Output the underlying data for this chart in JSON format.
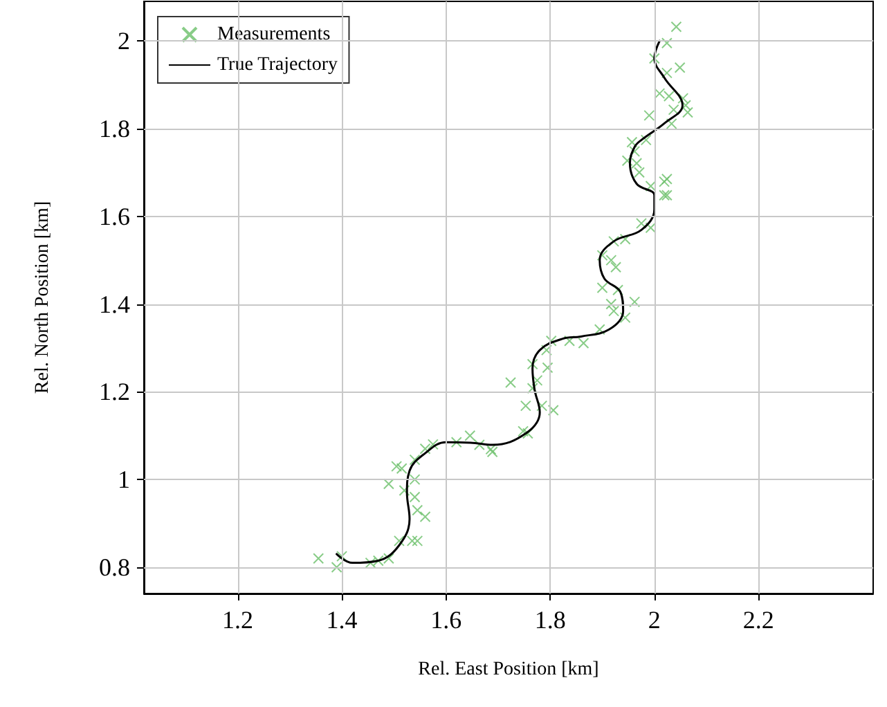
{
  "chart_data": {
    "type": "scatter",
    "xlabel": "Rel. East Position [km]",
    "ylabel": "Rel. North Position [km]",
    "xlim": [
      1.02,
      2.42
    ],
    "ylim": [
      0.74,
      2.09
    ],
    "xticks": [
      1.2,
      1.4,
      1.6,
      1.8,
      2,
      2.2
    ],
    "yticks": [
      0.8,
      1,
      1.2,
      1.4,
      1.6,
      1.8,
      2
    ],
    "grid": true,
    "legend": "top left",
    "marker": "cross",
    "series": [
      {
        "name": "Measurements",
        "color": "#6abf69",
        "x": [
          1.355,
          1.39,
          1.4,
          1.455,
          1.47,
          1.49,
          1.51,
          1.535,
          1.545,
          1.56,
          1.545,
          1.54,
          1.52,
          1.49,
          1.505,
          1.515,
          1.54,
          1.54,
          1.56,
          1.575,
          1.62,
          1.646,
          1.664,
          1.686,
          1.689,
          1.748,
          1.757,
          1.753,
          1.784,
          1.806,
          1.766,
          1.775,
          1.724,
          1.766,
          1.795,
          1.793,
          1.802,
          1.837,
          1.864,
          1.895,
          1.944,
          1.962,
          1.917,
          1.922,
          1.9,
          1.93,
          1.917,
          1.926,
          1.9,
          1.922,
          1.944,
          1.975,
          1.993,
          2.019,
          2.019,
          1.993,
          1.971,
          1.966,
          1.948,
          1.962,
          1.957,
          1.984,
          2.024,
          2.024,
          1.99,
          2.033,
          2.06,
          2.064,
          2.037,
          2.055,
          2.028,
          2.01,
          2.024,
          2.049,
          2.0,
          2.024,
          2.042
        ],
        "values": [
          0.82,
          0.8,
          0.825,
          0.81,
          0.815,
          0.82,
          0.86,
          0.86,
          0.86,
          0.915,
          0.93,
          0.96,
          0.975,
          0.99,
          1.03,
          1.025,
          1.0,
          1.045,
          1.07,
          1.08,
          1.085,
          1.1,
          1.079,
          1.069,
          1.063,
          1.11,
          1.105,
          1.168,
          1.168,
          1.158,
          1.208,
          1.226,
          1.221,
          1.263,
          1.255,
          1.295,
          1.316,
          1.316,
          1.311,
          1.342,
          1.369,
          1.405,
          1.4,
          1.384,
          1.437,
          1.432,
          1.5,
          1.484,
          1.511,
          1.543,
          1.548,
          1.584,
          1.574,
          1.648,
          1.679,
          1.669,
          1.7,
          1.721,
          1.727,
          1.748,
          1.769,
          1.774,
          1.648,
          1.685,
          1.83,
          1.811,
          1.853,
          1.837,
          1.843,
          1.869,
          1.874,
          1.88,
          1.927,
          1.939,
          1.96,
          1.995,
          2.032
        ]
      },
      {
        "name": "True Trajectory",
        "type": "line",
        "color": "#000000",
        "marker": "none",
        "x": [
          1.39,
          1.42,
          1.47,
          1.51,
          1.53,
          1.525,
          1.53,
          1.56,
          1.6,
          1.647,
          1.69,
          1.753,
          1.78,
          1.77,
          1.766,
          1.78,
          1.824,
          1.859,
          1.913,
          1.94,
          1.935,
          1.904,
          1.895,
          1.922,
          1.975,
          2.0,
          2.0,
          1.966,
          1.953,
          1.962,
          1.975,
          2.019,
          2.054,
          2.019,
          2.0,
          2.01
        ],
        "values": [
          0.83,
          0.81,
          0.815,
          0.85,
          0.91,
          0.97,
          1.02,
          1.06,
          1.085,
          1.084,
          1.079,
          1.105,
          1.153,
          1.205,
          1.253,
          1.295,
          1.321,
          1.326,
          1.342,
          1.384,
          1.427,
          1.458,
          1.5,
          1.543,
          1.569,
          1.616,
          1.648,
          1.674,
          1.721,
          1.758,
          1.774,
          1.812,
          1.853,
          1.916,
          1.96,
          2.0
        ]
      }
    ]
  }
}
